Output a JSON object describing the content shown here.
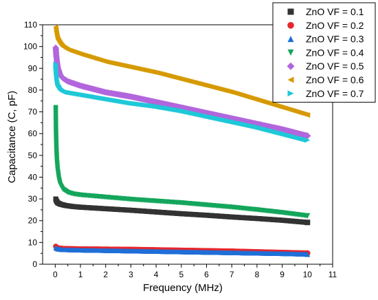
{
  "chart_data": {
    "type": "scatter",
    "title": "",
    "xlabel": "Frequency (MHz)",
    "ylabel": "Capacitance (C, pF)",
    "xlim": [
      -0.5,
      11
    ],
    "ylim": [
      0,
      110
    ],
    "x_ticks": [
      "0",
      "1",
      "2",
      "3",
      "4",
      "5",
      "6",
      "7",
      "8",
      "9",
      "10",
      "11"
    ],
    "y_ticks": [
      "0",
      "10",
      "20",
      "30",
      "40",
      "50",
      "60",
      "70",
      "80",
      "90",
      "100",
      "110"
    ],
    "grid": false,
    "legend_position": "top-right",
    "series": [
      {
        "name": "ZnO VF = 0.1",
        "color": "#333333",
        "marker": "square",
        "x": [
          0.02,
          0.05,
          0.1,
          0.2,
          0.4,
          0.7,
          1,
          2,
          3,
          4,
          5,
          6,
          7,
          8,
          9,
          10
        ],
        "y": [
          30,
          29,
          28.2,
          27.6,
          27,
          26.5,
          26.2,
          25.5,
          24.8,
          24,
          23.2,
          22.5,
          21.7,
          21,
          20.2,
          19.2
        ]
      },
      {
        "name": "ZnO VF = 0.2",
        "color": "#e8262b",
        "marker": "circle",
        "x": [
          0.02,
          0.1,
          0.3,
          1,
          2,
          3,
          4,
          5,
          6,
          7,
          8,
          9,
          10
        ],
        "y": [
          8.2,
          7.5,
          7.2,
          7,
          6.9,
          6.8,
          6.6,
          6.4,
          6.2,
          6,
          5.7,
          5.4,
          5.1
        ]
      },
      {
        "name": "ZnO VF = 0.3",
        "color": "#1f6fd8",
        "marker": "triangle-up",
        "x": [
          0.02,
          0.1,
          0.3,
          1,
          2,
          3,
          4,
          5,
          6,
          7,
          8,
          9,
          10
        ],
        "y": [
          7.6,
          7,
          6.7,
          6.5,
          6.3,
          6.1,
          5.9,
          5.7,
          5.5,
          5.3,
          5.1,
          4.9,
          4.6
        ]
      },
      {
        "name": "ZnO VF = 0.4",
        "color": "#14a65c",
        "marker": "triangle-down",
        "x": [
          0.02,
          0.03,
          0.04,
          0.05,
          0.07,
          0.1,
          0.15,
          0.2,
          0.3,
          0.5,
          0.7,
          1,
          2,
          3,
          4,
          5,
          6,
          7,
          8,
          9,
          10
        ],
        "y": [
          72,
          61,
          56,
          52,
          47,
          43,
          39,
          36.5,
          34.5,
          33,
          32.3,
          31.8,
          30.8,
          29.8,
          29,
          28.2,
          27.2,
          26.2,
          25,
          23.7,
          22.2
        ]
      },
      {
        "name": "ZnO VF = 0.5",
        "color": "#b266dd",
        "marker": "diamond",
        "x": [
          0.02,
          0.04,
          0.07,
          0.1,
          0.2,
          0.3,
          0.5,
          1,
          2,
          3,
          4,
          5,
          6,
          7,
          8,
          9,
          10
        ],
        "y": [
          99.5,
          96,
          93,
          90.5,
          87,
          85.5,
          84,
          82,
          79,
          77,
          74.5,
          72,
          69.5,
          67,
          64.5,
          62,
          59
        ]
      },
      {
        "name": "ZnO VF = 0.6",
        "color": "#d69a00",
        "marker": "triangle-left",
        "x": [
          0.02,
          0.04,
          0.07,
          0.1,
          0.2,
          0.3,
          0.5,
          1,
          2,
          3,
          4,
          5,
          6,
          7,
          8,
          9,
          10
        ],
        "y": [
          109,
          107,
          105,
          103.5,
          101.5,
          100,
          98.5,
          96.5,
          93,
          90.5,
          88,
          85,
          82,
          79,
          75.5,
          72,
          68.5
        ]
      },
      {
        "name": "ZnO VF = 0.7",
        "color": "#1ec8d8",
        "marker": "triangle-right",
        "x": [
          0.02,
          0.04,
          0.07,
          0.1,
          0.2,
          0.3,
          0.5,
          1,
          2,
          3,
          4,
          5,
          6,
          7,
          8,
          9,
          10
        ],
        "y": [
          92,
          88,
          85,
          83,
          81,
          80,
          79,
          78,
          76,
          74,
          72.5,
          70.5,
          68,
          65.5,
          63,
          60,
          57
        ]
      }
    ]
  }
}
